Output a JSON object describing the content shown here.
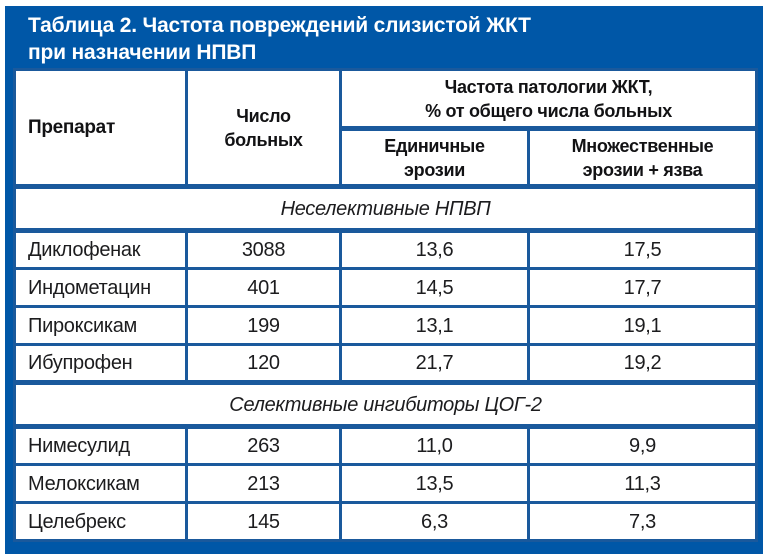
{
  "title": {
    "line1": "Таблица 2. Частота повреждений слизистой ЖКТ",
    "line2": "при назначении НПВП"
  },
  "table": {
    "headers": {
      "drug": "Препарат",
      "patients": "Число\nбольных",
      "frequency_group": "Частота патологии ЖКТ,\n% от общего числа больных",
      "single": "Единичные\nэрозии",
      "multiple": "Множественные\nэрозии + язва"
    },
    "sections": [
      {
        "label": "Неселективные НПВП",
        "rows": [
          {
            "drug": "Диклофенак",
            "patients": "3088",
            "single": "13,6",
            "multiple": "17,5"
          },
          {
            "drug": "Индометацин",
            "patients": "401",
            "single": "14,5",
            "multiple": "17,7"
          },
          {
            "drug": "Пироксикам",
            "patients": "199",
            "single": "13,1",
            "multiple": "19,1"
          },
          {
            "drug": "Ибупрофен",
            "patients": "120",
            "single": "21,7",
            "multiple": "19,2"
          }
        ]
      },
      {
        "label": "Селективные ингибиторы ЦОГ-2",
        "rows": [
          {
            "drug": "Нимесулид",
            "patients": "263",
            "single": "11,0",
            "multiple": "9,9"
          },
          {
            "drug": "Мелоксикам",
            "patients": "213",
            "single": "13,5",
            "multiple": "11,3"
          },
          {
            "drug": "Целебрекс",
            "patients": "145",
            "single": "6,3",
            "multiple": "7,3"
          }
        ]
      }
    ]
  },
  "colors": {
    "title_bar_blue": "#0057a7",
    "border_blue": "#1a599c",
    "title_text": "#ffffff",
    "body_text": "#1c1c1e"
  }
}
